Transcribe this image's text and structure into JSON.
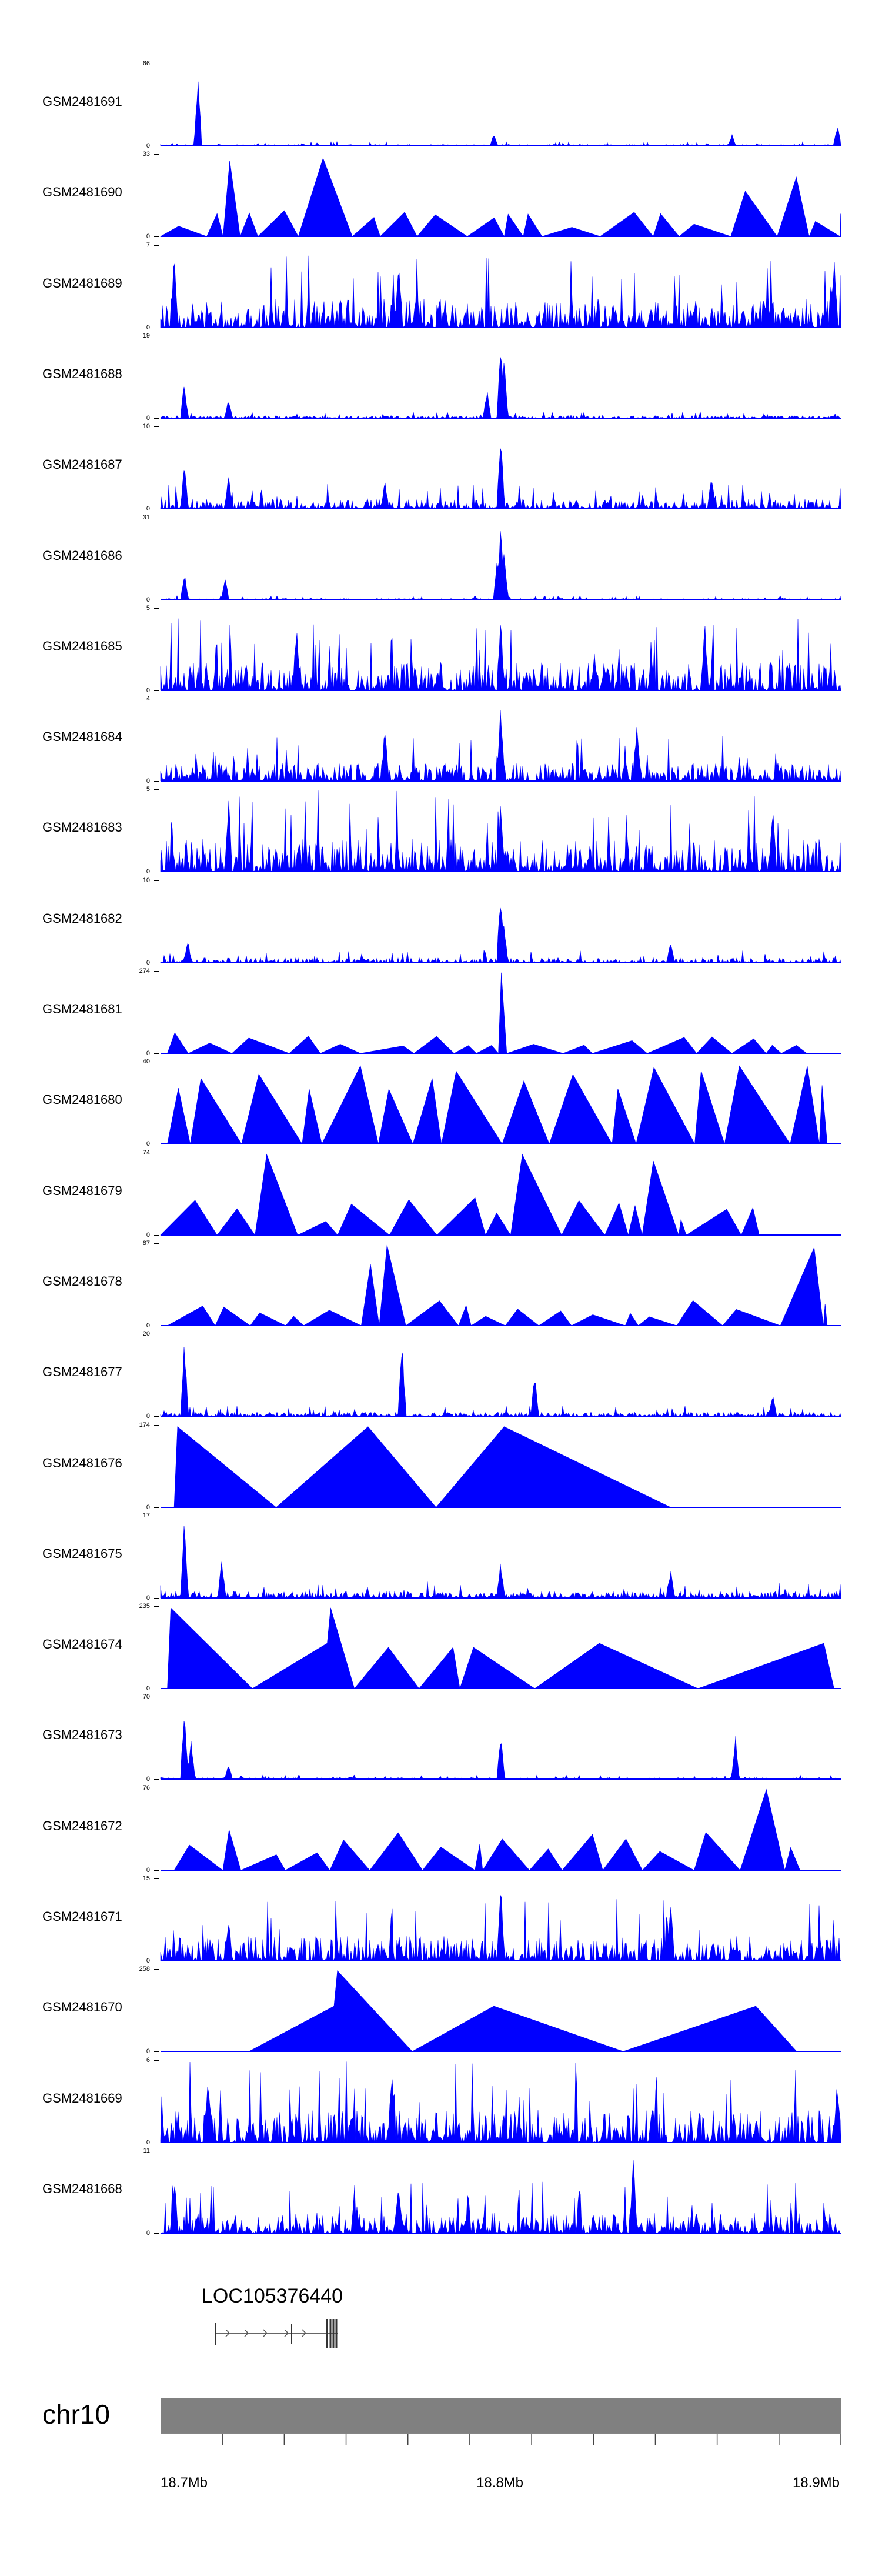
{
  "chart_data": {
    "type": "area",
    "color": "#0000ff",
    "genome_range_mb": [
      18.68,
      18.9
    ],
    "tracks": [
      {
        "name": "GSM2481691",
        "ymax": 66,
        "ymin": 0,
        "style": "noise",
        "base": 0.02,
        "spikes": [
          [
            0.055,
            0.92
          ],
          [
            0.49,
            0.15
          ],
          [
            0.84,
            0.14
          ],
          [
            0.995,
            0.28
          ]
        ],
        "seed": 11
      },
      {
        "name": "GSM2481690",
        "ymax": 33,
        "ymin": 0,
        "style": "tri",
        "base": 0.3,
        "spikes": [
          [
            0.11,
            0.92
          ],
          [
            0.255,
            0.95
          ],
          [
            0.87,
            0.55
          ],
          [
            0.95,
            0.72
          ]
        ],
        "seed": 12
      },
      {
        "name": "GSM2481689",
        "ymax": 7,
        "ymin": 0,
        "style": "noise",
        "base": 0.35,
        "spikes": [
          [
            0.02,
            0.9
          ],
          [
            0.35,
            0.8
          ],
          [
            0.99,
            0.9
          ]
        ],
        "seed": 13
      },
      {
        "name": "GSM2481688",
        "ymax": 19,
        "ymin": 0,
        "style": "noise",
        "base": 0.03,
        "spikes": [
          [
            0.035,
            0.45
          ],
          [
            0.48,
            0.35
          ],
          [
            0.5,
            0.95
          ],
          [
            0.505,
            0.75
          ],
          [
            0.1,
            0.25
          ]
        ],
        "seed": 14
      },
      {
        "name": "GSM2481687",
        "ymax": 10,
        "ymin": 0,
        "style": "noise",
        "base": 0.12,
        "spikes": [
          [
            0.035,
            0.55
          ],
          [
            0.1,
            0.42
          ],
          [
            0.5,
            0.95
          ],
          [
            0.33,
            0.35
          ],
          [
            0.81,
            0.45
          ]
        ],
        "seed": 15
      },
      {
        "name": "GSM2481686",
        "ymax": 31,
        "ymin": 0,
        "style": "noise",
        "base": 0.02,
        "spikes": [
          [
            0.035,
            0.35
          ],
          [
            0.095,
            0.3
          ],
          [
            0.5,
            0.98
          ],
          [
            0.505,
            0.7
          ],
          [
            0.495,
            0.6
          ]
        ],
        "seed": 16
      },
      {
        "name": "GSM2481685",
        "ymax": 5,
        "ymin": 0,
        "style": "noise",
        "base": 0.35,
        "spikes": [
          [
            0.5,
            0.9
          ],
          [
            0.2,
            0.85
          ],
          [
            0.8,
            0.85
          ]
        ],
        "seed": 17
      },
      {
        "name": "GSM2481684",
        "ymax": 4,
        "ymin": 0,
        "style": "noise",
        "base": 0.22,
        "spikes": [
          [
            0.5,
            0.95
          ],
          [
            0.33,
            0.7
          ],
          [
            0.7,
            0.75
          ]
        ],
        "seed": 18
      },
      {
        "name": "GSM2481683",
        "ymax": 5,
        "ymin": 0,
        "style": "noise",
        "base": 0.4,
        "spikes": [
          [
            0.1,
            0.9
          ],
          [
            0.5,
            0.9
          ],
          [
            0.9,
            0.9
          ]
        ],
        "seed": 19
      },
      {
        "name": "GSM2481682",
        "ymax": 10,
        "ymin": 0,
        "style": "noise",
        "base": 0.06,
        "spikes": [
          [
            0.5,
            0.95
          ],
          [
            0.505,
            0.5
          ],
          [
            0.04,
            0.3
          ],
          [
            0.75,
            0.28
          ]
        ],
        "seed": 20
      },
      {
        "name": "GSM2481681",
        "ymax": 274,
        "ymin": 0,
        "style": "tri",
        "base": 0.2,
        "spikes": [
          [
            0.5,
            0.98
          ],
          [
            0.02,
            0.25
          ],
          [
            0.8,
            0.2
          ]
        ],
        "seed": 21,
        "start": 0.01,
        "end": 0.95
      },
      {
        "name": "GSM2481680",
        "ymax": 40,
        "ymin": 0,
        "style": "bigtri",
        "base": 0.95,
        "spikes": [],
        "seed": 22,
        "start": 0.01,
        "end": 0.98
      },
      {
        "name": "GSM2481679",
        "ymax": 74,
        "ymin": 0,
        "style": "tri",
        "base": 0.45,
        "spikes": [
          [
            0.145,
            0.98
          ],
          [
            0.175,
            0.85
          ],
          [
            0.53,
            0.98
          ],
          [
            0.76,
            0.9
          ]
        ],
        "seed": 23,
        "start": 0.0,
        "end": 0.88
      },
      {
        "name": "GSM2481678",
        "ymax": 87,
        "ymin": 0,
        "style": "tri",
        "base": 0.3,
        "spikes": [
          [
            0.33,
            0.98
          ],
          [
            0.3,
            0.75
          ],
          [
            0.915,
            0.95
          ],
          [
            0.93,
            0.75
          ]
        ],
        "seed": 24,
        "start": 0.01,
        "end": 0.98
      },
      {
        "name": "GSM2481677",
        "ymax": 20,
        "ymin": 0,
        "style": "noise",
        "base": 0.05,
        "spikes": [
          [
            0.035,
            0.95
          ],
          [
            0.355,
            0.95
          ],
          [
            0.55,
            0.55
          ],
          [
            0.9,
            0.3
          ]
        ],
        "seed": 25
      },
      {
        "name": "GSM2481676",
        "ymax": 174,
        "ymin": 0,
        "style": "fixed",
        "seed": 26,
        "pts": [
          [
            0.02,
            0
          ],
          [
            0.025,
            0.98
          ],
          [
            0.17,
            0
          ],
          [
            0.305,
            0.98
          ],
          [
            0.405,
            0
          ],
          [
            0.505,
            0.98
          ],
          [
            0.75,
            0
          ]
        ]
      },
      {
        "name": "GSM2481675",
        "ymax": 17,
        "ymin": 0,
        "style": "noise",
        "base": 0.08,
        "spikes": [
          [
            0.035,
            0.95
          ],
          [
            0.09,
            0.5
          ],
          [
            0.5,
            0.45
          ],
          [
            0.75,
            0.4
          ]
        ],
        "seed": 27
      },
      {
        "name": "GSM2481674",
        "ymax": 235,
        "ymin": 0,
        "style": "fixed",
        "seed": 28,
        "pts": [
          [
            0.01,
            0
          ],
          [
            0.015,
            0.98
          ],
          [
            0.135,
            0
          ],
          [
            0.245,
            0.55
          ],
          [
            0.25,
            0.98
          ],
          [
            0.285,
            0
          ],
          [
            0.335,
            0.5
          ],
          [
            0.38,
            0
          ],
          [
            0.43,
            0.5
          ],
          [
            0.44,
            0
          ],
          [
            0.46,
            0.5
          ],
          [
            0.55,
            0
          ],
          [
            0.645,
            0.55
          ],
          [
            0.79,
            0
          ],
          [
            0.975,
            0.55
          ],
          [
            0.99,
            0
          ]
        ]
      },
      {
        "name": "GSM2481673",
        "ymax": 70,
        "ymin": 0,
        "style": "noise",
        "base": 0.02,
        "spikes": [
          [
            0.035,
            0.98
          ],
          [
            0.045,
            0.5
          ],
          [
            0.5,
            0.58
          ],
          [
            0.845,
            0.55
          ],
          [
            0.1,
            0.2
          ]
        ],
        "seed": 29
      },
      {
        "name": "GSM2481672",
        "ymax": 76,
        "ymin": 0,
        "style": "tri",
        "base": 0.48,
        "spikes": [
          [
            0.895,
            0.98
          ],
          [
            0.88,
            0.45
          ],
          [
            0.87,
            0.45
          ]
        ],
        "seed": 30,
        "start": 0.02,
        "end": 0.94
      },
      {
        "name": "GSM2481671",
        "ymax": 15,
        "ymin": 0,
        "style": "noise",
        "base": 0.3,
        "spikes": [
          [
            0.5,
            0.98
          ],
          [
            0.1,
            0.6
          ],
          [
            0.75,
            0.7
          ]
        ],
        "seed": 31
      },
      {
        "name": "GSM2481670",
        "ymax": 258,
        "ymin": 0,
        "style": "fixed",
        "seed": 32,
        "pts": [
          [
            0.13,
            0
          ],
          [
            0.255,
            0.55
          ],
          [
            0.26,
            0.98
          ],
          [
            0.37,
            0
          ],
          [
            0.49,
            0.55
          ],
          [
            0.68,
            0
          ],
          [
            0.875,
            0.55
          ],
          [
            0.935,
            0
          ]
        ]
      },
      {
        "name": "GSM2481669",
        "ymax": 6,
        "ymin": 0,
        "style": "noise",
        "base": 0.4,
        "spikes": [
          [
            0.34,
            0.98
          ],
          [
            0.995,
            0.8
          ],
          [
            0.07,
            0.8
          ]
        ],
        "seed": 33
      },
      {
        "name": "GSM2481668",
        "ymax": 11,
        "ymin": 0,
        "style": "noise",
        "base": 0.25,
        "spikes": [
          [
            0.695,
            0.95
          ],
          [
            0.02,
            0.7
          ],
          [
            0.35,
            0.65
          ]
        ],
        "seed": 34
      }
    ],
    "gene": {
      "name": "LOC105376440",
      "start_mb": 18.698,
      "end_mb": 18.736
    },
    "chromosome": "chr10",
    "axis": {
      "range_mb": [
        18.68,
        18.9
      ],
      "major_ticks": [
        18.7,
        18.8,
        18.9
      ],
      "major_labels": [
        "18.7Mb",
        "18.8Mb",
        "18.9Mb"
      ],
      "minor_step_mb": 0.02
    }
  }
}
